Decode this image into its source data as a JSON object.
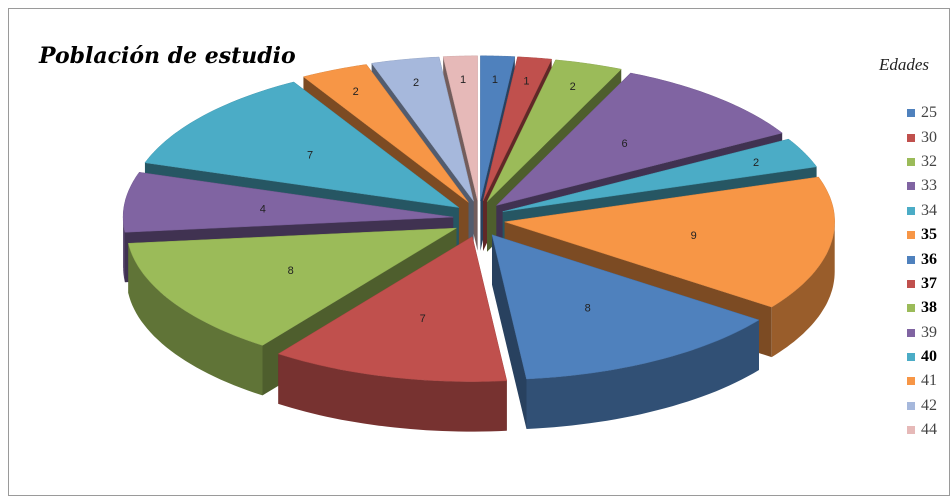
{
  "chart_data": {
    "type": "pie",
    "title": "Población de estudio",
    "legend_title": "Edades",
    "legend_position": "right",
    "exploded": true,
    "three_d": true,
    "slices": [
      {
        "label": "25",
        "value": 1,
        "color": "#4f81bd"
      },
      {
        "label": "30",
        "value": 1,
        "color": "#c0504d"
      },
      {
        "label": "32",
        "value": 2,
        "color": "#9bbb59"
      },
      {
        "label": "33",
        "value": 6,
        "color": "#8064a2"
      },
      {
        "label": "34",
        "value": 2,
        "color": "#4bacc6"
      },
      {
        "label": "35",
        "value": 9,
        "color": "#f79646"
      },
      {
        "label": "36",
        "value": 8,
        "color": "#4f81bd"
      },
      {
        "label": "37",
        "value": 7,
        "color": "#c0504d"
      },
      {
        "label": "38",
        "value": 8,
        "color": "#9bbb59"
      },
      {
        "label": "39",
        "value": 4,
        "color": "#8064a2"
      },
      {
        "label": "40",
        "value": 7,
        "color": "#4bacc6"
      },
      {
        "label": "41",
        "value": 2,
        "color": "#f79646"
      },
      {
        "label": "42",
        "value": 2,
        "color": "#a6b8dc"
      },
      {
        "label": "44",
        "value": 1,
        "color": "#e6b9b8"
      }
    ],
    "legend_bold": [
      "35",
      "36",
      "37",
      "38",
      "40"
    ]
  }
}
